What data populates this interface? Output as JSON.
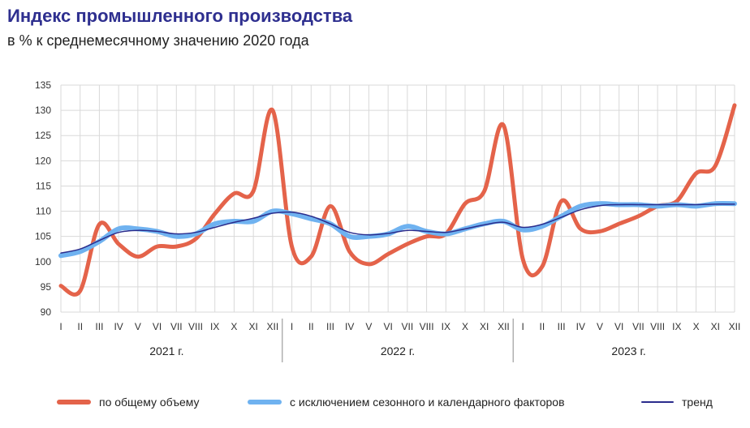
{
  "header": {
    "title": "Индекс промышленного производства",
    "subtitle": "в % к среднемесячному значению 2020 года"
  },
  "colors": {
    "total": "#e4634a",
    "seasonal": "#6fb2f0",
    "trend": "#2b2c8c",
    "grid": "#d9d9d9",
    "title": "#2e2f8f"
  },
  "chart_data": {
    "type": "line",
    "title": "Индекс промышленного производства",
    "subtitle": "в % к среднемесячному значению 2020 года",
    "ylim": [
      90,
      135
    ],
    "yticks": [
      90,
      95,
      100,
      105,
      110,
      115,
      120,
      125,
      130,
      135
    ],
    "grid": true,
    "legend_position": "bottom",
    "months": [
      "I",
      "II",
      "III",
      "IV",
      "V",
      "VI",
      "VII",
      "VIII",
      "IX",
      "X",
      "XI",
      "XII",
      "I",
      "II",
      "III",
      "IV",
      "V",
      "VI",
      "VII",
      "VIII",
      "IX",
      "X",
      "XI",
      "XII",
      "I",
      "II",
      "III",
      "IV",
      "V",
      "VI",
      "VII",
      "VIII",
      "IX",
      "X",
      "XI",
      "XII"
    ],
    "years": [
      "2021 г.",
      "2022 г.",
      "2023 г."
    ],
    "series": [
      {
        "name": "по общему объему",
        "values": [
          95.2,
          94.2,
          107.4,
          103.5,
          101.0,
          103.0,
          103.0,
          104.5,
          109.5,
          113.5,
          114.0,
          130.0,
          103.0,
          101.0,
          111.0,
          102.0,
          99.5,
          101.5,
          103.5,
          105.0,
          105.5,
          111.5,
          114.0,
          127.0,
          100.5,
          99.0,
          112.0,
          106.5,
          106.0,
          107.5,
          109.0,
          111.0,
          112.0,
          117.5,
          119.0,
          131.0
        ]
      },
      {
        "name": "с исключением сезонного и календарного факторов",
        "values": [
          101.2,
          102.0,
          104.0,
          106.5,
          106.5,
          106.0,
          105.0,
          105.5,
          107.5,
          108.0,
          108.0,
          110.0,
          109.5,
          108.5,
          107.5,
          105.0,
          105.0,
          105.5,
          107.0,
          106.0,
          105.5,
          106.5,
          107.5,
          108.0,
          106.3,
          107.0,
          109.0,
          111.0,
          111.5,
          111.3,
          111.3,
          111.0,
          111.3,
          111.0,
          111.5,
          111.5
        ]
      },
      {
        "name": "тренд",
        "values": [
          101.7,
          102.5,
          104.2,
          105.8,
          106.2,
          106.0,
          105.5,
          105.8,
          106.8,
          107.8,
          108.6,
          109.6,
          109.8,
          109.0,
          107.5,
          105.8,
          105.3,
          105.6,
          106.2,
          106.0,
          105.8,
          106.5,
          107.3,
          107.8,
          106.8,
          107.4,
          108.8,
          110.3,
          111.1,
          111.3,
          111.3,
          111.3,
          111.3,
          111.3,
          111.4,
          111.4
        ]
      }
    ]
  }
}
